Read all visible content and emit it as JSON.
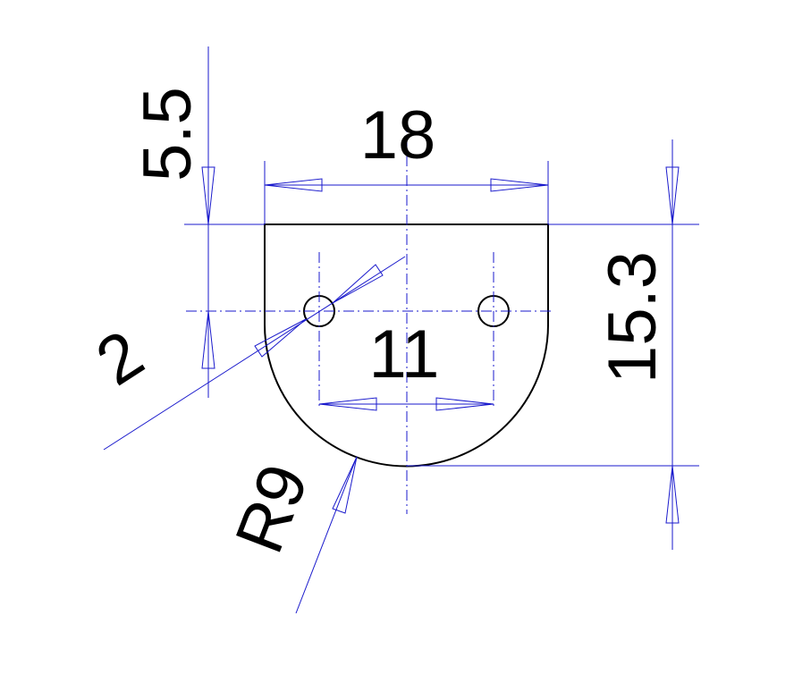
{
  "dimensions": {
    "overall_width": "18",
    "top_offset": "5.5",
    "overall_height": "15.3",
    "hole_spacing": "11",
    "hole_diameter": "2",
    "bottom_radius": "R9"
  },
  "colors": {
    "part_outline": "#000000",
    "dimension_lines": "#1a1acc",
    "background": "#ffffff"
  }
}
